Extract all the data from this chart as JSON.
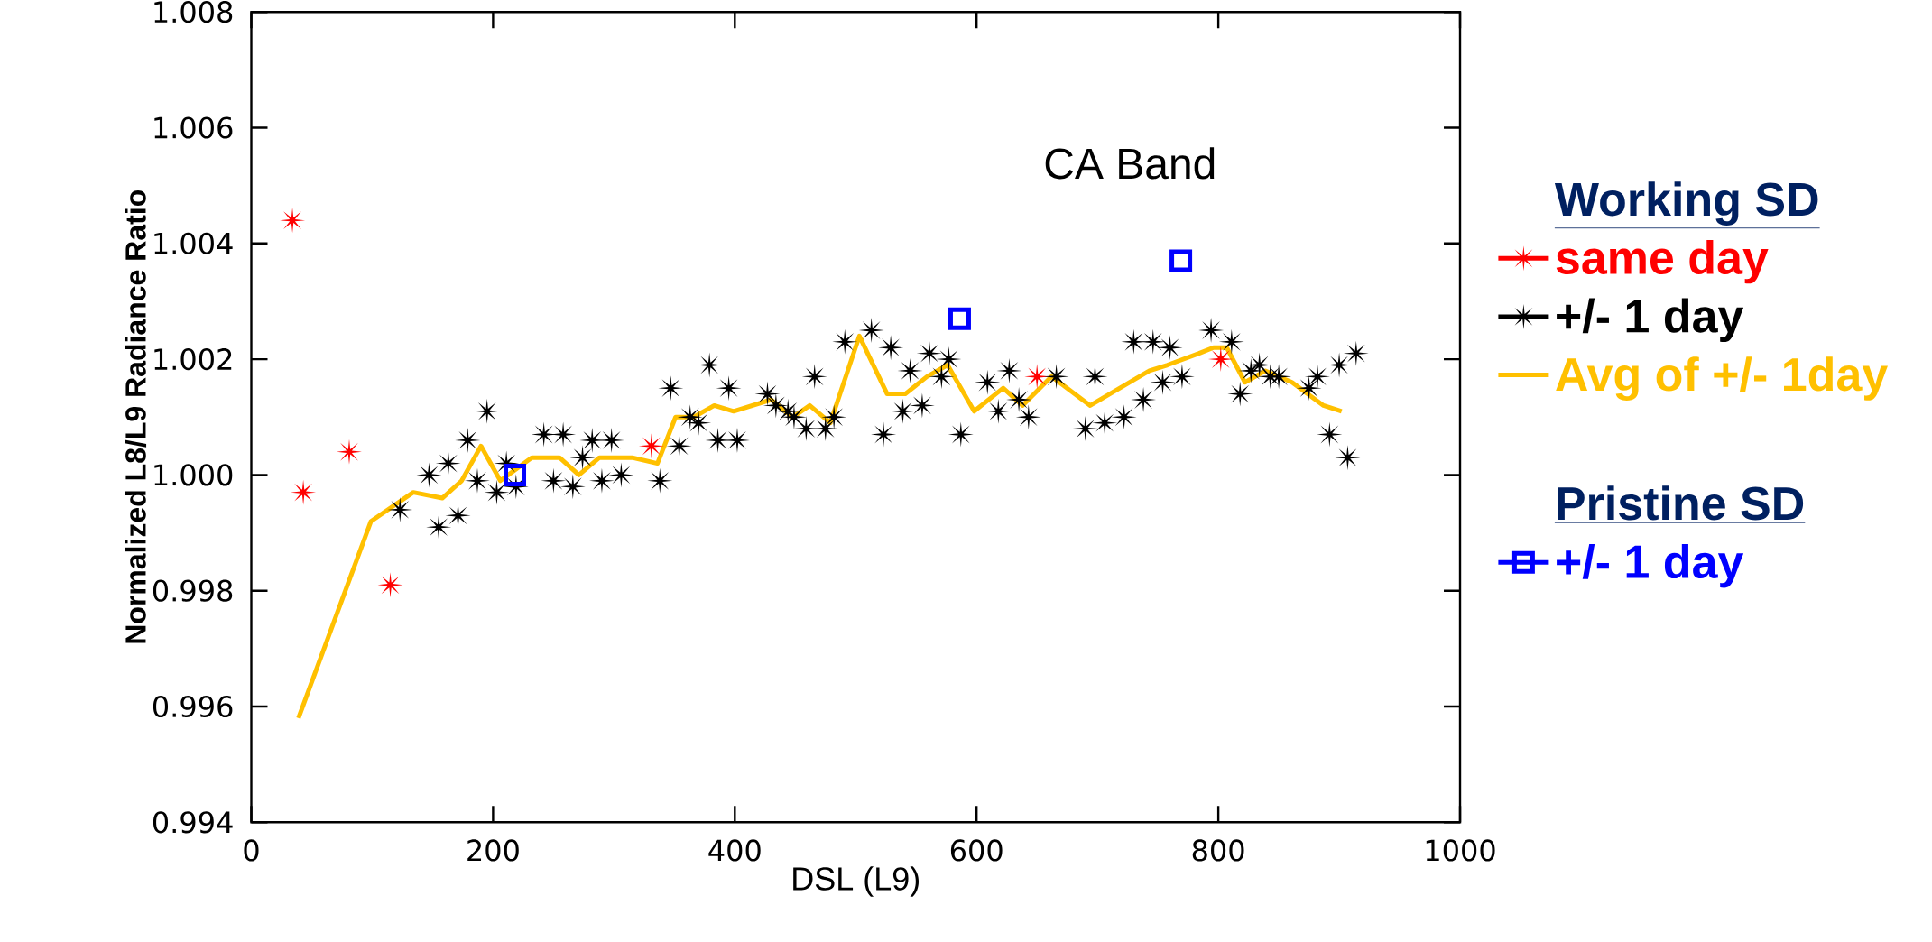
{
  "chart_data": {
    "type": "scatter",
    "title": "CA Band",
    "xlabel": "DSL (L9)",
    "ylabel": "Normalized L8/L9 Radiance Ratio",
    "legend": "right",
    "legend_title": "Working SD",
    "annotations": [
      "Pristine SD"
    ],
    "xlim": [
      0,
      1000
    ],
    "ylim": [
      0.994,
      1.008
    ],
    "xticks": [
      0,
      200,
      400,
      600,
      800,
      1000
    ],
    "yticks": [
      {
        "value": 0.994,
        "label": "0.994"
      },
      {
        "value": 0.996,
        "label": "0.996"
      },
      {
        "value": 0.998,
        "label": "0.998"
      },
      {
        "value": 1.0,
        "label": "1.000"
      },
      {
        "value": 1.002,
        "label": "1.002"
      },
      {
        "value": 1.004,
        "label": "1.004"
      },
      {
        "value": 1.006,
        "label": "1.006"
      },
      {
        "value": 1.008,
        "label": "1.008"
      }
    ],
    "series": [
      {
        "name": "same day",
        "marker": "star",
        "color": "#ff0000",
        "x": [
          34,
          43,
          81,
          115,
          331,
          650,
          802
        ],
        "values": [
          1.0044,
          0.9997,
          1.0004,
          0.9981,
          1.0005,
          1.0017,
          1.002
        ]
      },
      {
        "name": "+/- 1 day",
        "marker": "star",
        "color": "#000000",
        "x": [
          123,
          147,
          155,
          163,
          171,
          179,
          187,
          195,
          203,
          211,
          219,
          242,
          250,
          258,
          266,
          274,
          282,
          290,
          298,
          306,
          338,
          347,
          354,
          363,
          370,
          379,
          386,
          395,
          402,
          427,
          434,
          444,
          449,
          459,
          466,
          475,
          482,
          491,
          513,
          523,
          529,
          539,
          545,
          555,
          561,
          571,
          577,
          587,
          609,
          618,
          627,
          635,
          643,
          666,
          690,
          698,
          706,
          722,
          730,
          738,
          746,
          754,
          760,
          770,
          794,
          811,
          818,
          827,
          834,
          843,
          850,
          875,
          882,
          892,
          900,
          907,
          914
        ],
        "values": [
          0.9994,
          1.0,
          0.9991,
          1.0002,
          0.9993,
          1.0006,
          0.9999,
          1.0011,
          0.9997,
          1.0002,
          0.9998,
          1.0007,
          0.9999,
          1.0007,
          0.9998,
          1.0003,
          1.0006,
          0.9999,
          1.0006,
          1.0,
          0.9999,
          1.0015,
          1.0005,
          1.001,
          1.0009,
          1.0019,
          1.0006,
          1.0015,
          1.0006,
          1.0014,
          1.0012,
          1.0011,
          1.001,
          1.0008,
          1.0017,
          1.0008,
          1.001,
          1.0023,
          1.0025,
          1.0007,
          1.0022,
          1.0011,
          1.0018,
          1.0012,
          1.0021,
          1.0017,
          1.002,
          1.0007,
          1.0016,
          1.0011,
          1.0018,
          1.0013,
          1.001,
          1.0017,
          1.0008,
          1.0017,
          1.0009,
          1.001,
          1.0023,
          1.0013,
          1.0023,
          1.0016,
          1.0022,
          1.0017,
          1.0025,
          1.0023,
          1.0014,
          1.0018,
          1.0019,
          1.0017,
          1.0017,
          1.0015,
          1.0017,
          1.0007,
          1.0019,
          1.0003,
          1.0021
        ]
      },
      {
        "name": "Avg of +/- 1day",
        "type": "line",
        "marker": "none",
        "color": "#ffc000",
        "x": [
          39,
          99,
          134,
          158,
          174,
          190,
          206,
          232,
          255,
          271,
          288,
          315,
          336,
          351,
          366,
          383,
          399,
          430,
          448,
          462,
          479,
          503,
          526,
          541,
          559,
          576,
          598,
          622,
          638,
          662,
          694,
          743,
          758,
          784,
          796,
          807,
          822,
          839,
          861,
          887,
          902
        ],
        "values": [
          0.9958,
          0.9992,
          0.9997,
          0.9996,
          0.9999,
          1.0005,
          0.9999,
          1.0003,
          1.0003,
          1.0,
          1.0003,
          1.0003,
          1.0002,
          1.001,
          1.001,
          1.0012,
          1.0011,
          1.0013,
          1.001,
          1.0012,
          1.0009,
          1.0024,
          1.0014,
          1.0014,
          1.0017,
          1.0019,
          1.0011,
          1.0015,
          1.0012,
          1.0017,
          1.0012,
          1.0018,
          1.0019,
          1.0021,
          1.0022,
          1.0022,
          1.0016,
          1.0018,
          1.0016,
          1.0012,
          1.0011
        ]
      },
      {
        "name": "+/- 1 day",
        "marker": "square",
        "color": "#0000ff",
        "x": [
          218,
          586,
          769
        ],
        "values": [
          1.0,
          1.0027,
          1.0037
        ]
      }
    ]
  }
}
